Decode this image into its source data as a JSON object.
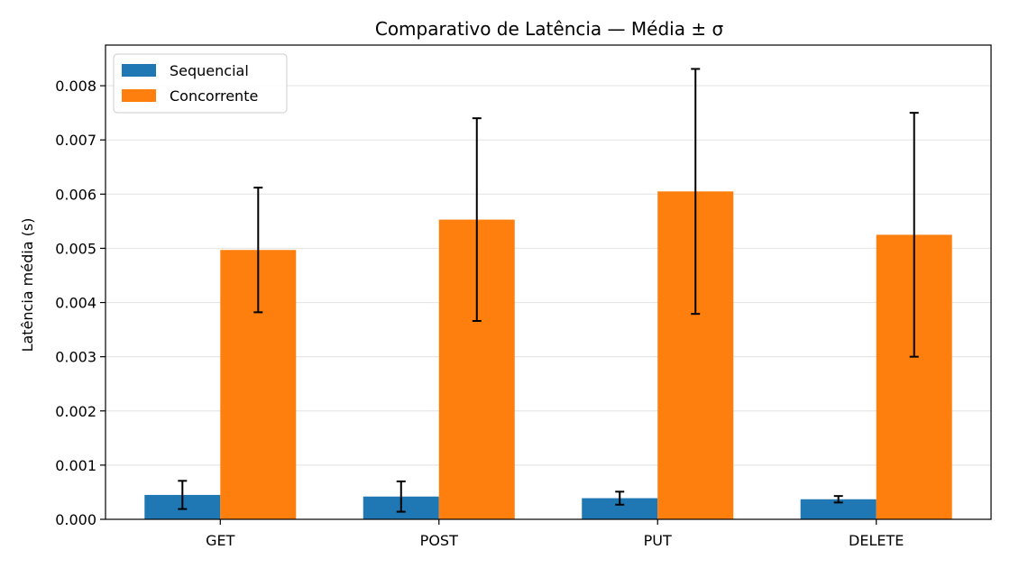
{
  "chart_data": {
    "type": "bar",
    "title": "Comparativo de Latência — Média ± σ",
    "xlabel": "",
    "ylabel": "Latência média (s)",
    "categories": [
      "GET",
      "POST",
      "PUT",
      "DELETE"
    ],
    "ylim": [
      0,
      0.00875
    ],
    "yticks": [
      "0.000",
      "0.001",
      "0.002",
      "0.003",
      "0.004",
      "0.005",
      "0.006",
      "0.007",
      "0.008"
    ],
    "grid": "horizontal",
    "legend_position": "top-left",
    "series": [
      {
        "name": "Sequencial",
        "color": "#1f77b4",
        "values": [
          0.00045,
          0.00042,
          0.00039,
          0.00037
        ],
        "errors": [
          0.00026,
          0.00028,
          0.00012,
          6e-05
        ]
      },
      {
        "name": "Concorrente",
        "color": "#ff7f0e",
        "values": [
          0.00497,
          0.00553,
          0.00605,
          0.00525
        ],
        "errors": [
          0.00115,
          0.00187,
          0.00226,
          0.00225
        ]
      }
    ]
  }
}
